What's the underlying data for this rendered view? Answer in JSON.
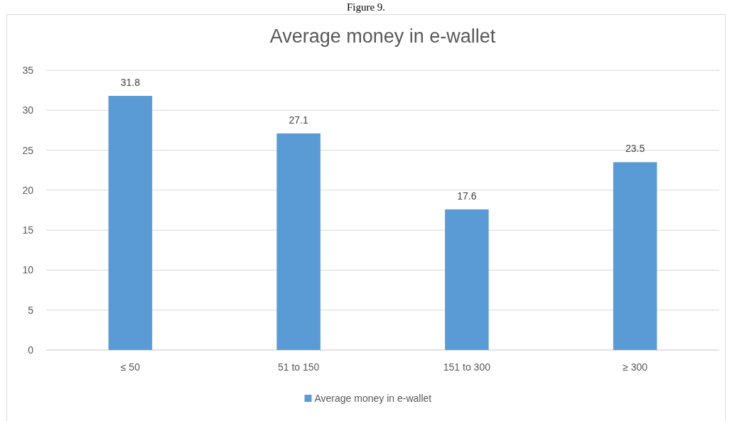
{
  "chart_data": {
    "type": "bar",
    "title": "Average money in e-wallet",
    "annotations": [
      "Figure 9."
    ],
    "categories": [
      "≤ 50",
      "51 to 150",
      "151 to 300",
      "≥ 300"
    ],
    "series": [
      {
        "name": "Average money in e-wallet",
        "color": "#5b9bd5",
        "values": [
          31.8,
          27.1,
          17.6,
          23.5
        ]
      }
    ],
    "ylim": [
      0,
      35
    ],
    "yticks": [
      0,
      5,
      10,
      15,
      20,
      25,
      30,
      35
    ],
    "grid": "y",
    "legend": "bottom",
    "data_labels": true
  }
}
